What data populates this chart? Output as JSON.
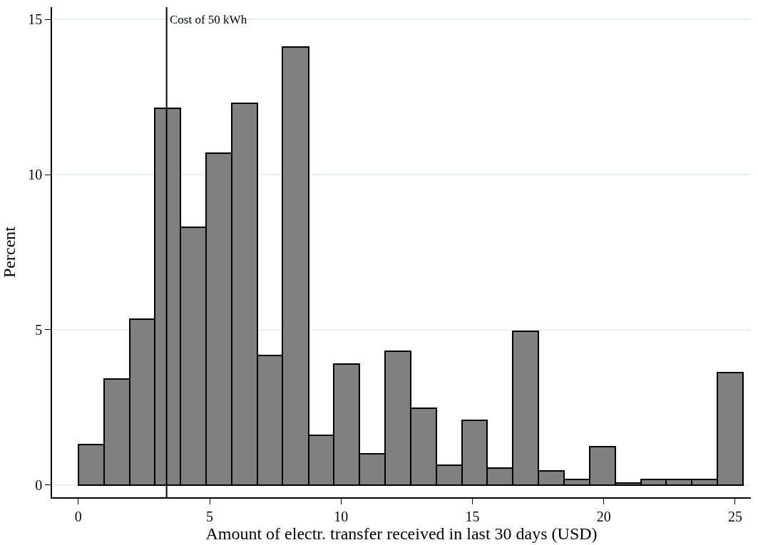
{
  "chart_data": {
    "type": "histogram",
    "xlabel": "Amount of electr. transfer received in last 30 days (USD)",
    "ylabel": "Percent",
    "bins": [
      0,
      0.97,
      1.95,
      2.92,
      3.89,
      4.87,
      5.84,
      6.81,
      7.78,
      8.76,
      9.73,
      10.7,
      11.68,
      12.65,
      13.62,
      14.6,
      15.57,
      16.54,
      17.52,
      18.49,
      19.46,
      20.43,
      21.41,
      22.38,
      23.35,
      24.33,
      25.3
    ],
    "values": [
      1.3,
      3.42,
      5.33,
      12.13,
      8.3,
      10.69,
      12.31,
      4.18,
      14.12,
      1.6,
      3.89,
      1.01,
      4.3,
      2.47,
      0.64,
      2.09,
      0.54,
      4.96,
      0.46,
      0.18,
      1.22,
      0.06,
      0.18,
      0.18,
      0.18,
      3.61
    ],
    "color": "#808080",
    "xlim": [
      -1,
      25.6
    ],
    "xticks": [
      0,
      5,
      10,
      15,
      20,
      25
    ],
    "ylim": [
      -0.4,
      15.4
    ],
    "yticks": [
      0,
      5,
      10,
      15
    ],
    "grid": "y",
    "ref_lines": [
      {
        "axis": "x",
        "value": 3.36,
        "label": "Cost of 50 kWh",
        "color": "#000000"
      }
    ]
  }
}
